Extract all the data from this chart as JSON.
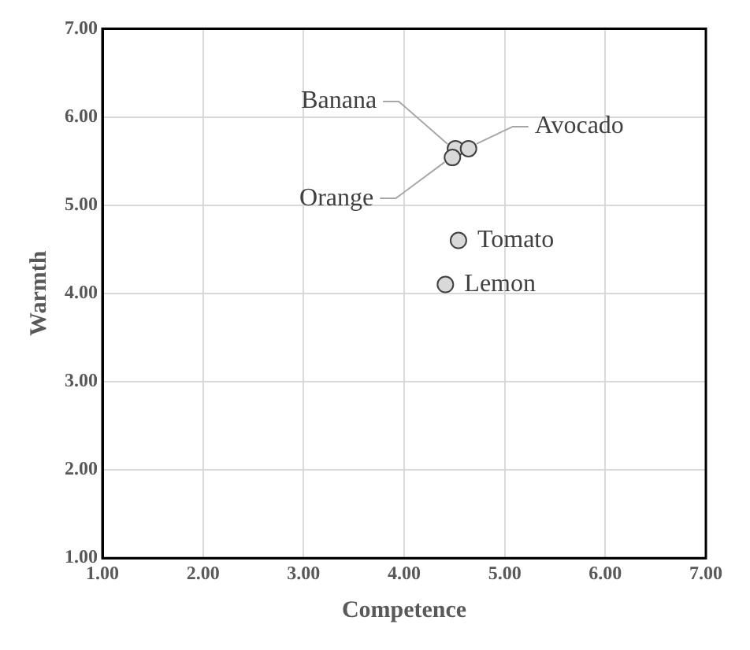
{
  "chart_data": {
    "type": "scatter",
    "xlabel": "Competence",
    "ylabel": "Warmth",
    "x": [
      4.51,
      4.64,
      4.48,
      4.54,
      4.41
    ],
    "values": [
      5.64,
      5.64,
      5.54,
      4.6,
      4.1
    ],
    "color": "#d9d9d9",
    "marker": "circle",
    "xlim": [
      1,
      7
    ],
    "xticks": [
      {
        "value": 1,
        "label": "1.00"
      },
      {
        "value": 2,
        "label": "2.00"
      },
      {
        "value": 3,
        "label": "3.00"
      },
      {
        "value": 4,
        "label": "4.00"
      },
      {
        "value": 5,
        "label": "5.00"
      },
      {
        "value": 6,
        "label": "6.00"
      },
      {
        "value": 7,
        "label": "7.00"
      }
    ],
    "ylim": [
      1,
      7
    ],
    "yticks": [
      {
        "value": 1,
        "label": "1.00"
      },
      {
        "value": 2,
        "label": "2.00"
      },
      {
        "value": 3,
        "label": "3.00"
      },
      {
        "value": 4,
        "label": "4.00"
      },
      {
        "value": 5,
        "label": "5.00"
      },
      {
        "value": 6,
        "label": "6.00"
      },
      {
        "value": 7,
        "label": "7.00"
      }
    ],
    "grid": true,
    "annotations": [
      {
        "text": "Banana",
        "x": 4.51,
        "y": 5.64
      },
      {
        "text": "Avocado",
        "x": 4.64,
        "y": 5.64
      },
      {
        "text": "Orange",
        "x": 4.48,
        "y": 5.54
      },
      {
        "text": "Tomato",
        "x": 4.54,
        "y": 4.6
      },
      {
        "text": "Lemon",
        "x": 4.41,
        "y": 4.1
      }
    ]
  }
}
